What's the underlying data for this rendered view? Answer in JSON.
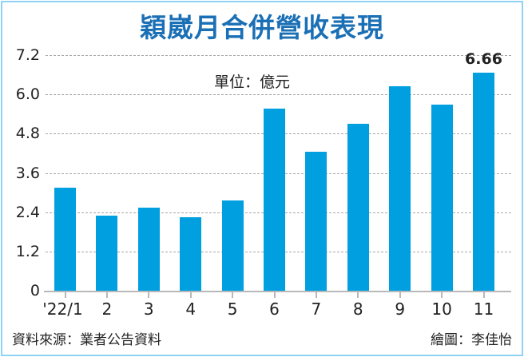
{
  "header": {
    "title": "穎崴月合併營收表現"
  },
  "unit_label": "單位：億元",
  "footer": {
    "source": "資料來源：業者公告資料",
    "credit": "繪圖：李佳怡"
  },
  "colors": {
    "bar": "#009fe0",
    "title": "#1a6fb5",
    "frame": "#8fd3f4",
    "grid": "#a8a8a8"
  },
  "yticks": [
    "0",
    "1.2",
    "2.4",
    "3.6",
    "4.8",
    "6.0",
    "7.2"
  ],
  "chart_data": {
    "type": "bar",
    "title": "穎崴月合併營收表現",
    "subtitle": "單位：億元",
    "xlabel": "",
    "ylabel": "億元",
    "categories": [
      "'22/1",
      "2",
      "3",
      "4",
      "5",
      "6",
      "7",
      "8",
      "9",
      "10",
      "11"
    ],
    "values": [
      3.14,
      2.3,
      2.55,
      2.25,
      2.75,
      5.56,
      4.25,
      5.1,
      6.26,
      5.69,
      6.66
    ],
    "ylim": [
      0,
      7.2
    ],
    "yticks": [
      0,
      1.2,
      2.4,
      3.6,
      4.8,
      6.0,
      7.2
    ],
    "grid": true,
    "gridstyle": "dashed horizontal",
    "annotations": [
      {
        "category": "11",
        "text": "6.66"
      }
    ],
    "legend": null
  }
}
